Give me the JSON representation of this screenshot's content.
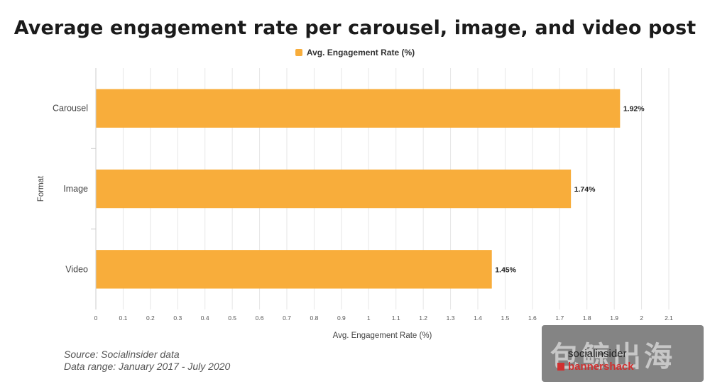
{
  "chart_data": {
    "type": "bar",
    "orientation": "horizontal",
    "title": "Average engagement rate per carousel, image, and video post",
    "legend": {
      "label": "Avg. Engagement Rate (%)",
      "position": "top-center"
    },
    "categories": [
      "Carousel",
      "Image",
      "Video"
    ],
    "values": [
      1.92,
      1.74,
      1.45
    ],
    "data_labels": [
      "1.92%",
      "1.74%",
      "1.45%"
    ],
    "xlabel": "Avg. Engagement Rate (%)",
    "ylabel": "Format",
    "xlim": [
      0,
      2.1
    ],
    "x_ticks": [
      "0",
      "0.1",
      "0.2",
      "0.3",
      "0.4",
      "0.5",
      "0.6",
      "0.7",
      "0.8",
      "0.9",
      "1",
      "1.1",
      "1.2",
      "1.3",
      "1.4",
      "1.5",
      "1.6",
      "1.7",
      "1.8",
      "1.9",
      "2",
      "2.1"
    ],
    "grid": true
  },
  "colors": {
    "bar": "#f8ad3b",
    "grid": "#e6e6e6",
    "axis": "#cccccc",
    "text": "#444444"
  },
  "footer": {
    "source": "Source: Socialinsider data",
    "range": "Data range: January 2017 - July 2020"
  },
  "watermark": {
    "text": "包鲸出海",
    "brand1": "socialinsider",
    "brand2": "bannershack"
  }
}
